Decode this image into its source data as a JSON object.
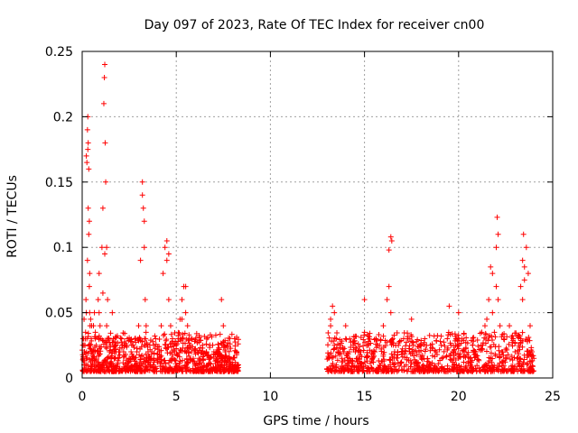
{
  "chart_data": {
    "type": "scatter",
    "title": "Day 097 of 2023, Rate Of TEC Index for receiver cn00",
    "xlabel": "GPS time / hours",
    "ylabel": "ROTI / TECUs",
    "xlim": [
      0,
      25
    ],
    "ylim": [
      0,
      0.25
    ],
    "xticks": [
      0,
      5,
      10,
      15,
      20,
      25
    ],
    "xtick_labels": [
      "0",
      "5",
      "10",
      "15",
      "20",
      "25"
    ],
    "yticks": [
      0,
      0.05,
      0.1,
      0.15,
      0.2,
      0.25
    ],
    "ytick_labels": [
      "0",
      "0.05",
      "0.1",
      "0.15",
      "0.2",
      "0.25"
    ],
    "grid": true,
    "legend": "none",
    "marker": "+",
    "color": "#ff0000",
    "series": [
      {
        "x": [
          0.05,
          0.08,
          0.1,
          0.12,
          0.15,
          0.18,
          0.2,
          0.22,
          0.25,
          0.26,
          0.28,
          0.3,
          0.32,
          0.35,
          0.38,
          0.4,
          0.42,
          0.45,
          0.48,
          0.5,
          0.55,
          0.6,
          0.65,
          0.7,
          0.75,
          0.8,
          0.85,
          0.9,
          0.95,
          1.0,
          1.05,
          1.1,
          1.15,
          1.18,
          1.2,
          1.22,
          1.25,
          1.3,
          1.35,
          1.4,
          1.45,
          1.5,
          1.55,
          1.6,
          1.65,
          1.7,
          1.8,
          1.9,
          2.0,
          2.1,
          2.2,
          2.3,
          2.4,
          2.5,
          2.6,
          2.7,
          2.8,
          2.9,
          3.0,
          3.1,
          3.2,
          3.25,
          3.3,
          3.35,
          3.4,
          3.5,
          3.6,
          3.7,
          3.8,
          3.9,
          4.0,
          4.1,
          4.2,
          4.3,
          4.4,
          4.5,
          4.6,
          4.7,
          4.8,
          4.9,
          5.0,
          5.1,
          5.2,
          5.3,
          5.4,
          5.5,
          5.6,
          5.7,
          5.8,
          5.9,
          6.0,
          6.2,
          6.4,
          6.6,
          6.8,
          7.0,
          7.2,
          7.4,
          7.6,
          7.8,
          8.0,
          8.2,
          8.3,
          0.1,
          0.15,
          0.22,
          0.25,
          0.28,
          0.3,
          0.32,
          0.35,
          0.38,
          0.4,
          0.45,
          0.5,
          0.7,
          0.9,
          1.1,
          1.2,
          1.3,
          1.6,
          1.8,
          2.5,
          3.2,
          3.3,
          4.5,
          4.6,
          5.3,
          5.5,
          7.4,
          7.5,
          8.1,
          13.1,
          13.2,
          13.3,
          13.4,
          13.5,
          13.6,
          13.7,
          13.8,
          13.9,
          14.0,
          14.2,
          14.4,
          14.6,
          14.8,
          15.0,
          15.2,
          15.4,
          15.6,
          15.8,
          16.0,
          16.2,
          16.3,
          16.4,
          16.5,
          16.6,
          16.8,
          17.0,
          17.3,
          17.6,
          17.9,
          18.2,
          18.5,
          18.8,
          19.1,
          19.4,
          19.7,
          20.0,
          20.3,
          20.6,
          20.9,
          21.2,
          21.4,
          21.6,
          21.7,
          21.8,
          21.9,
          22.0,
          22.1,
          22.2,
          22.3,
          22.5,
          22.7,
          22.9,
          23.0,
          23.1,
          23.2,
          23.3,
          23.4,
          23.5,
          23.6,
          23.7,
          23.8,
          23.9,
          24.0,
          13.2,
          13.4,
          14.0,
          15.0,
          16.3,
          16.4,
          16.45,
          17.5,
          19.5,
          20.0,
          21.5,
          21.8,
          22.0,
          22.05,
          22.1,
          23.3,
          23.4,
          23.45,
          23.5
        ],
        "y": [
          0.015,
          0.03,
          0.045,
          0.02,
          0.01,
          0.035,
          0.06,
          0.05,
          0.03,
          0.015,
          0.09,
          0.2,
          0.18,
          0.16,
          0.12,
          0.08,
          0.04,
          0.025,
          0.03,
          0.02,
          0.015,
          0.04,
          0.05,
          0.03,
          0.025,
          0.02,
          0.06,
          0.08,
          0.04,
          0.03,
          0.1,
          0.13,
          0.21,
          0.23,
          0.24,
          0.18,
          0.15,
          0.1,
          0.06,
          0.03,
          0.02,
          0.025,
          0.015,
          0.02,
          0.03,
          0.02,
          0.025,
          0.015,
          0.02,
          0.03,
          0.02,
          0.025,
          0.03,
          0.015,
          0.02,
          0.025,
          0.03,
          0.02,
          0.04,
          0.09,
          0.15,
          0.13,
          0.1,
          0.06,
          0.04,
          0.02,
          0.015,
          0.02,
          0.025,
          0.03,
          0.015,
          0.02,
          0.04,
          0.08,
          0.1,
          0.09,
          0.06,
          0.04,
          0.03,
          0.02,
          0.025,
          0.03,
          0.045,
          0.06,
          0.07,
          0.05,
          0.04,
          0.03,
          0.02,
          0.015,
          0.02,
          0.015,
          0.025,
          0.02,
          0.015,
          0.02,
          0.01,
          0.015,
          0.02,
          0.015,
          0.01,
          0.02,
          0.01,
          0.01,
          0.025,
          0.17,
          0.165,
          0.19,
          0.175,
          0.13,
          0.11,
          0.07,
          0.05,
          0.045,
          0.04,
          0.035,
          0.05,
          0.065,
          0.095,
          0.04,
          0.05,
          0.02,
          0.015,
          0.14,
          0.12,
          0.105,
          0.095,
          0.045,
          0.07,
          0.06,
          0.04,
          0.03,
          0.015,
          0.04,
          0.055,
          0.05,
          0.03,
          0.02,
          0.025,
          0.015,
          0.02,
          0.03,
          0.02,
          0.025,
          0.015,
          0.02,
          0.035,
          0.025,
          0.02,
          0.03,
          0.025,
          0.04,
          0.06,
          0.07,
          0.05,
          0.03,
          0.02,
          0.025,
          0.02,
          0.03,
          0.025,
          0.02,
          0.03,
          0.025,
          0.02,
          0.015,
          0.03,
          0.02,
          0.025,
          0.02,
          0.015,
          0.02,
          0.025,
          0.04,
          0.06,
          0.085,
          0.05,
          0.035,
          0.07,
          0.06,
          0.04,
          0.02,
          0.015,
          0.04,
          0.03,
          0.02,
          0.015,
          0.025,
          0.03,
          0.06,
          0.085,
          0.1,
          0.08,
          0.04,
          0.02,
          0.015,
          0.045,
          0.025,
          0.04,
          0.06,
          0.098,
          0.108,
          0.105,
          0.045,
          0.055,
          0.05,
          0.045,
          0.08,
          0.1,
          0.123,
          0.11,
          0.07,
          0.09,
          0.11,
          0.075
        ]
      }
    ]
  }
}
